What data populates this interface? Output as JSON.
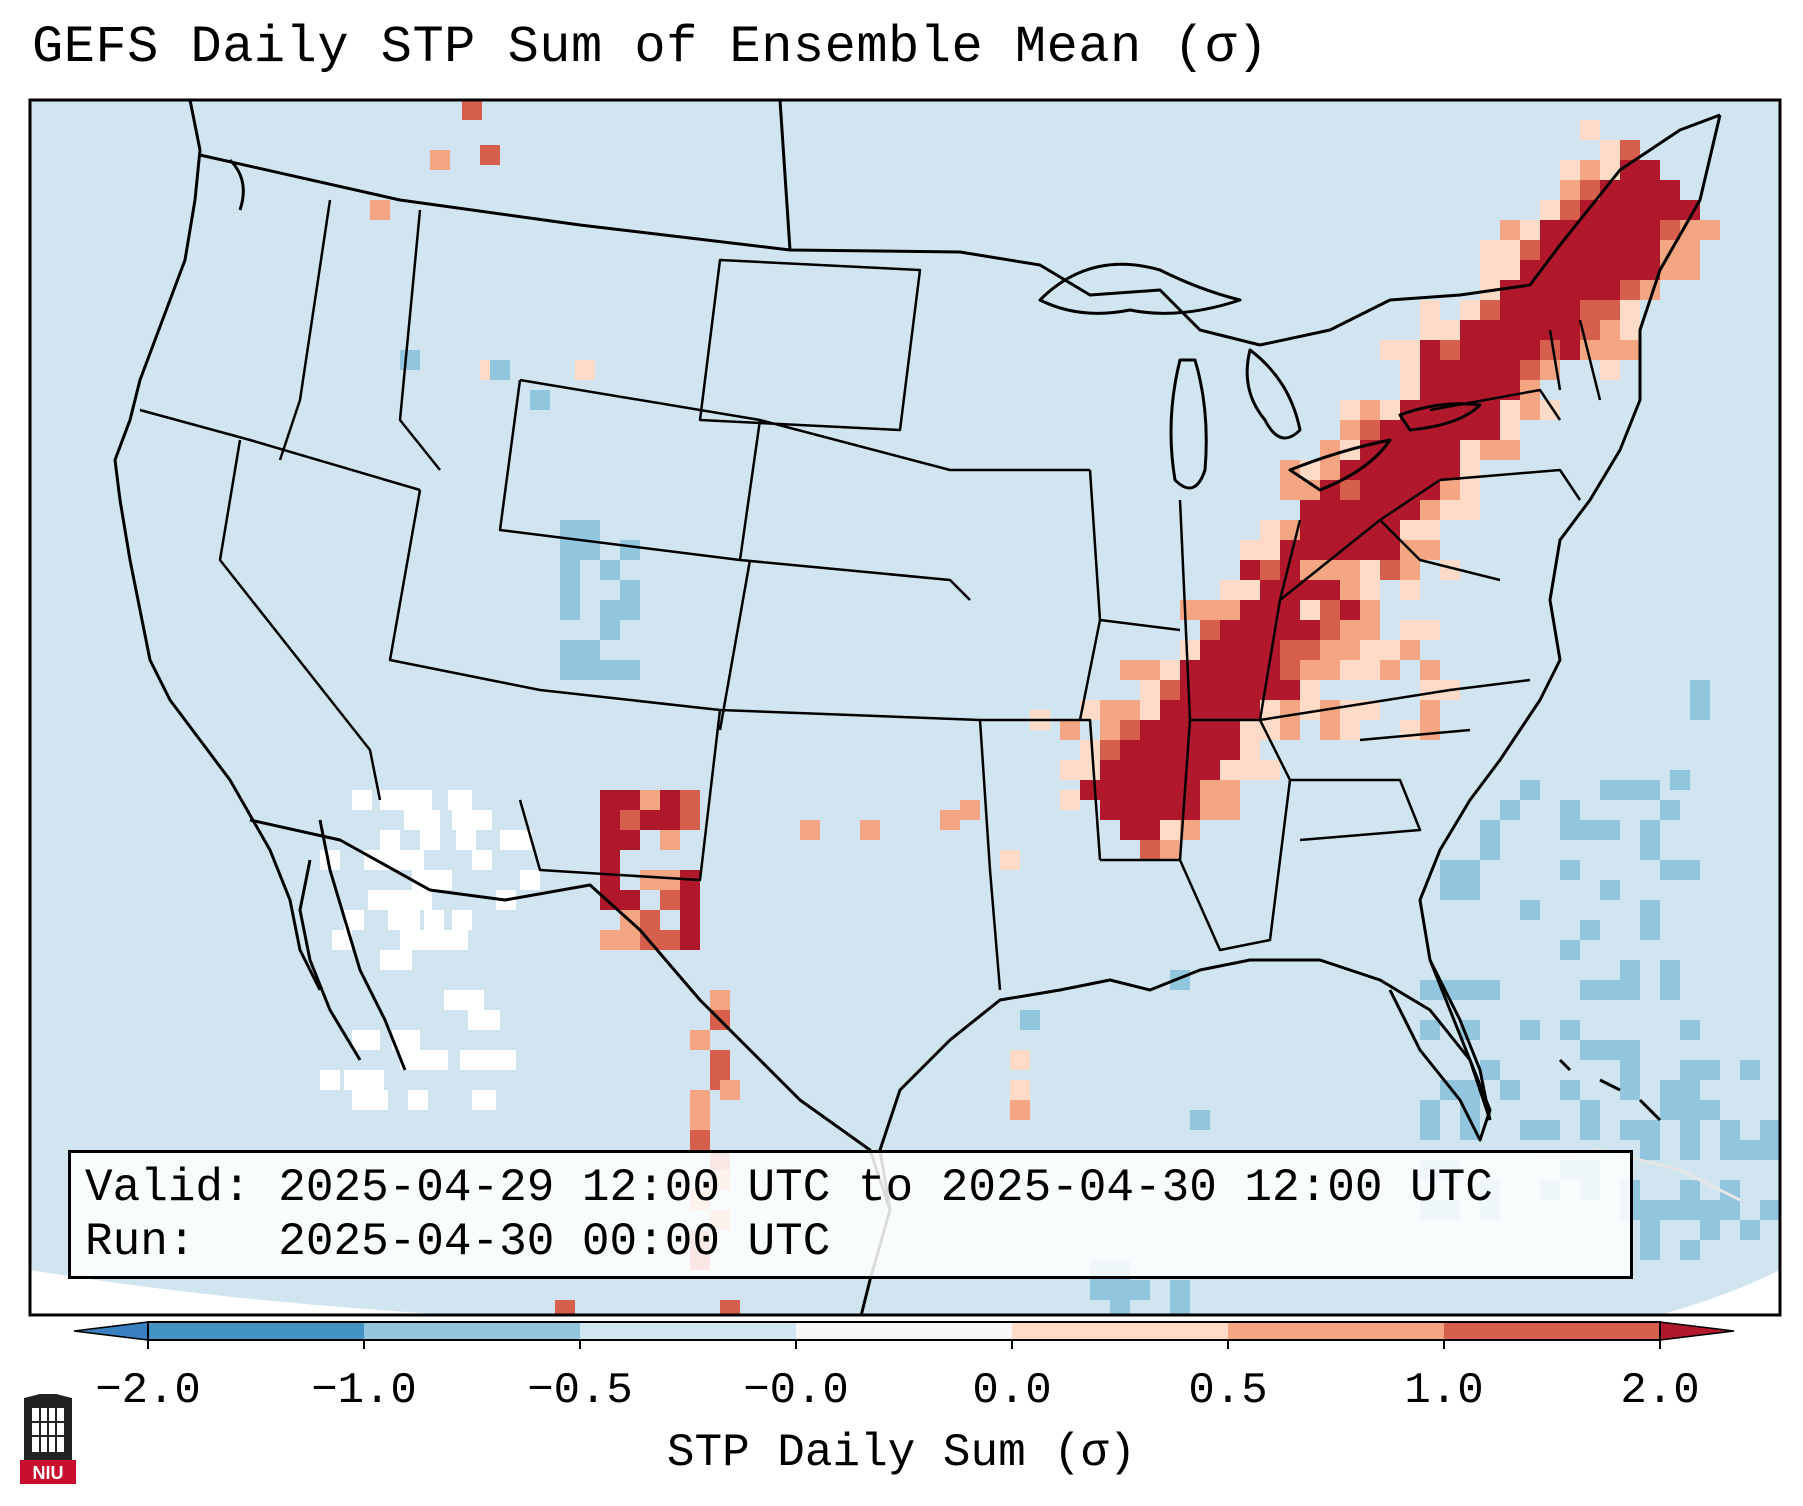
{
  "figure": {
    "title": "GEFS Daily STP Sum of Ensemble Mean (σ)",
    "valid_label": "Valid:",
    "valid_value": "2025-04-29 12:00 UTC to 2025-04-30 12:00 UTC",
    "run_label": "Run:",
    "run_value": "2025-04-30 00:00 UTC",
    "logo_text": "NIU"
  },
  "colorbar": {
    "label": "STP Daily Sum (σ)",
    "ticks": [
      "−2.0",
      "−1.0",
      "−0.5",
      "−0.0",
      "0.0",
      "0.5",
      "1.0",
      "2.0"
    ],
    "colors": {
      "extend_low": "#3a7fbf",
      "b1": "#4393c3",
      "b2": "#92c5de",
      "b3": "#d1e5f0",
      "b4": "#f7f7f7",
      "b5": "#fddbc7",
      "b6": "#f4a582",
      "b7": "#d6604d",
      "extend_high": "#b2182b"
    }
  },
  "map": {
    "background_color": "#d1e5f0",
    "boundary_color": "#000000",
    "regions": [
      {
        "name": "high-risk-ohio-valley-to-northeast",
        "level": "b7"
      },
      {
        "name": "enhanced-tennessee-valley",
        "level": "extend_high"
      },
      {
        "name": "west-texas-cluster",
        "level": "extend_high"
      },
      {
        "name": "gulf-negative-anomaly",
        "level": "b2"
      },
      {
        "name": "southwest-mexico-neutral",
        "level": "b4"
      }
    ]
  }
}
